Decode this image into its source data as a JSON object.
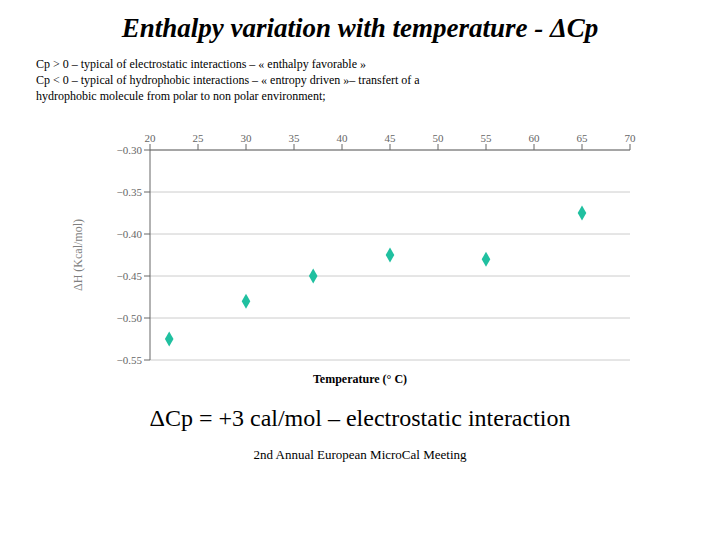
{
  "chart_data": {
    "type": "scatter",
    "title": "Enthalpy variation with temperature - ΔCp",
    "subtitle": [
      "Cp > 0 – typical of electrostatic interactions – « enthalpy favorable »",
      "Cp < 0 – typical of hydrophobic interactions – « entropy driven »– transfert  of a",
      "hydrophobic molecule from polar to non polar environment;"
    ],
    "x": [
      22,
      30,
      37,
      45,
      55,
      65
    ],
    "values": [
      -0.525,
      -0.48,
      -0.45,
      -0.425,
      -0.43,
      -0.375
    ],
    "xlim": [
      20,
      70
    ],
    "ylim": [
      -0.55,
      -0.3
    ],
    "xticks": [
      20,
      25,
      30,
      35,
      40,
      45,
      50,
      55,
      60,
      65,
      70
    ],
    "yticks": [
      {
        "value": -0.55,
        "label": "−0.55"
      },
      {
        "value": -0.5,
        "label": "−0.50"
      },
      {
        "value": -0.45,
        "label": "−0.45"
      },
      {
        "value": -0.4,
        "label": "−0.40"
      },
      {
        "value": -0.35,
        "label": "−0.35"
      },
      {
        "value": -0.3,
        "label": "−0.30"
      }
    ],
    "xlabel": "Temperature (° C)",
    "ylabel": "ΔH (Kcal/mol)",
    "color": "#20c0a0",
    "marker": "diamond",
    "grid": "y",
    "annotations": [
      "ΔCp = +3 cal/mol – electrostatic interaction",
      "2nd Annual European MicroCal Meeting"
    ]
  }
}
